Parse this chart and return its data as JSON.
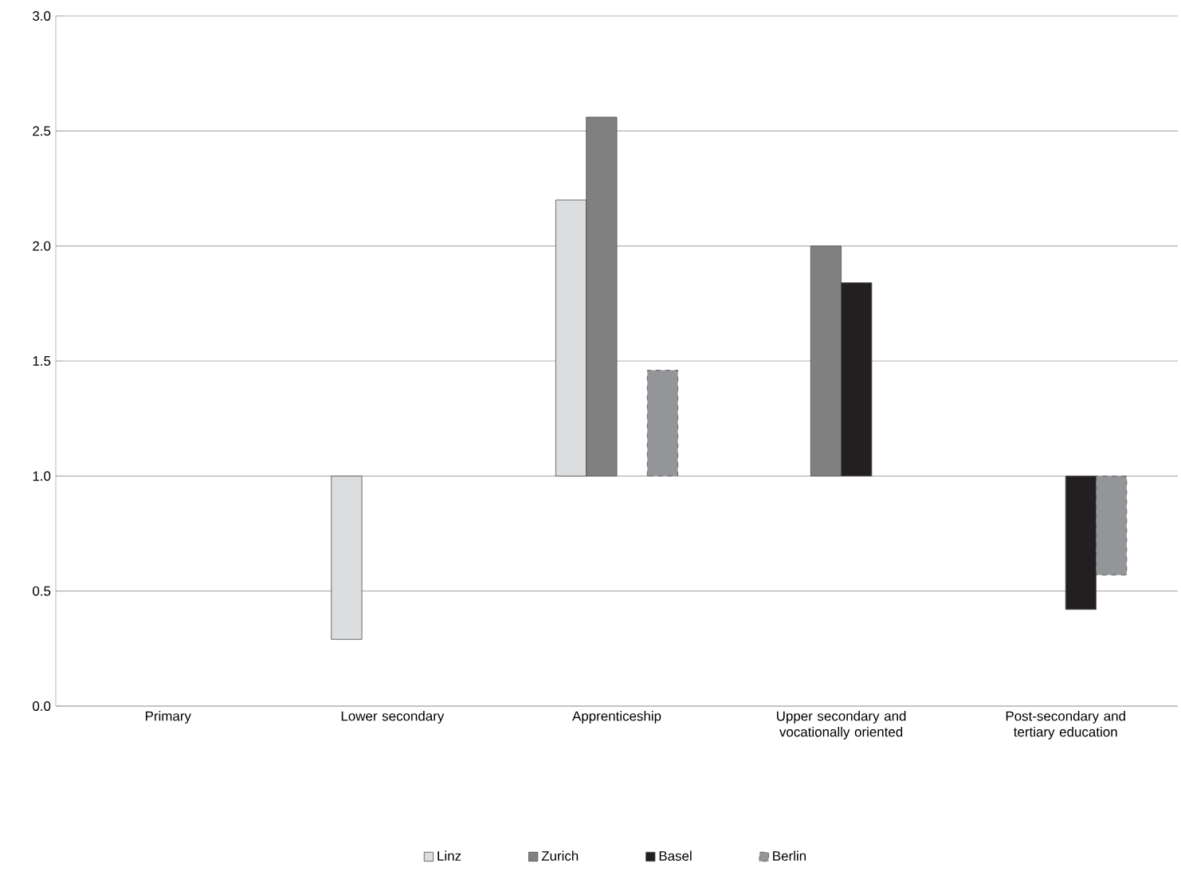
{
  "chart_data": {
    "type": "bar",
    "categories": [
      "Primary",
      "Lower secondary",
      "Apprenticeship",
      "Upper secondary and vocationally oriented",
      "Post-secondary and tertiary education"
    ],
    "series": [
      {
        "name": "Linz",
        "color": "#dcdddf",
        "base": [
          null,
          1,
          1,
          null,
          null
        ],
        "values": [
          null,
          -0.71,
          1.2,
          null,
          null
        ]
      },
      {
        "name": "Zurich",
        "color": "#808080",
        "base": [
          null,
          null,
          1,
          1,
          null
        ],
        "values": [
          null,
          null,
          1.56,
          1.0,
          null
        ]
      },
      {
        "name": "Basel",
        "color": "#231f20",
        "base": [
          null,
          null,
          null,
          1,
          1
        ],
        "values": [
          null,
          null,
          null,
          0.84,
          -0.58
        ]
      },
      {
        "name": "Berlin",
        "color": "#939598",
        "line_style": "dashed",
        "base": [
          null,
          null,
          1,
          null,
          1
        ],
        "values": [
          null,
          null,
          0.46,
          null,
          -0.43
        ]
      }
    ],
    "ylim": [
      0,
      3
    ],
    "yticks": [
      {
        "value": 0,
        "label": "0.0"
      },
      {
        "value": 0.5,
        "label": "0.5"
      },
      {
        "value": 1,
        "label": "1.0"
      },
      {
        "value": 1.5,
        "label": "1.5"
      },
      {
        "value": 2,
        "label": "2.0"
      },
      {
        "value": 2.5,
        "label": "2.5"
      },
      {
        "value": 3,
        "label": "3.0"
      }
    ],
    "grid": "y",
    "legend": "bottom"
  }
}
